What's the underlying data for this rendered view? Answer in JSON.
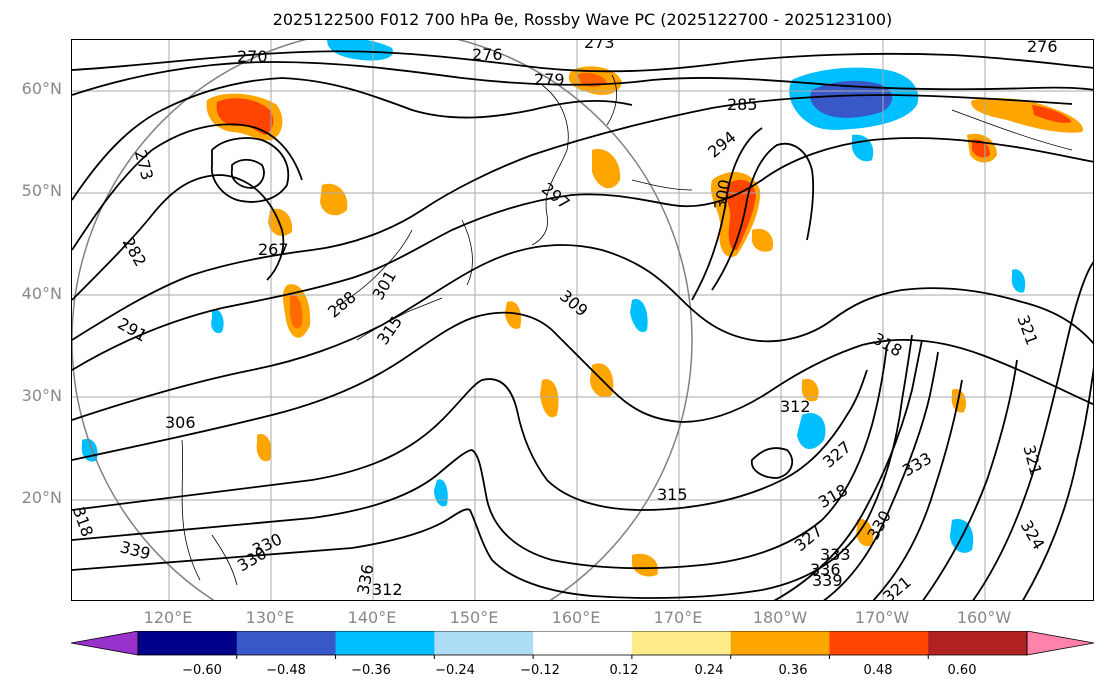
{
  "title": "2025122500 F012 700 hPa θe, Rossby Wave PC (2025122700 - 2025123100)",
  "map": {
    "lat_labels": [
      "60°N",
      "50°N",
      "40°N",
      "30°N",
      "20°N"
    ],
    "lon_labels": [
      "120°E",
      "130°E",
      "140°E",
      "150°E",
      "160°E",
      "170°E",
      "180°W",
      "170°W",
      "160°W"
    ],
    "contour_labels": [
      "270",
      "273",
      "276",
      "273",
      "276",
      "279",
      "285",
      "294",
      "297",
      "300",
      "267",
      "282",
      "288",
      "291",
      "301",
      "309",
      "315",
      "312",
      "318",
      "306",
      "321",
      "318",
      "333",
      "327",
      "330",
      "318",
      "339",
      "336",
      "330",
      "315",
      "327",
      "333",
      "336",
      "339",
      "330",
      "324",
      "321",
      "312",
      "321"
    ],
    "colors": {
      "land_line": "#000000",
      "grid": "#aaaaaa",
      "circle": "#808080"
    }
  },
  "colorbar": {
    "levels": [
      "−0.60",
      "−0.48",
      "−0.36",
      "−0.24",
      "−0.12",
      "0.12",
      "0.24",
      "0.36",
      "0.48",
      "0.60"
    ],
    "colors": [
      "#9932CC",
      "#00008B",
      "#3858C8",
      "#00BFFF",
      "#ADDCF5",
      "#ffffff",
      "#FFEC8B",
      "#FFA500",
      "#FF4500",
      "#B22222",
      "#FF82AB"
    ]
  }
}
